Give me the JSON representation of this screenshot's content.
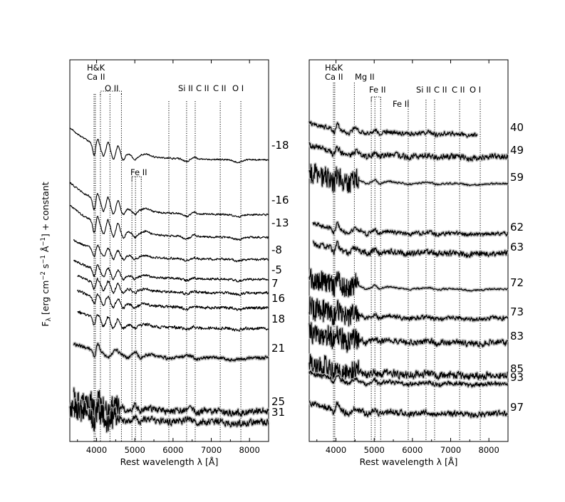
{
  "figure": {
    "ylabel": "F_λ [erg cm⁻² s⁻¹ Å⁻¹] + constant",
    "ylabel_parts": {
      "F": "F",
      "lambda_sub": "λ",
      "open": " [erg cm",
      "cm_exp": "−2",
      "s": " s",
      "s_exp": "−1",
      "A": " Å",
      "A_exp": "−1",
      "close": "] + constant"
    }
  },
  "chart_data": [
    {
      "type": "line",
      "panel": "left",
      "xlabel": "Rest wavelength λ [Å]",
      "xlim": [
        3300,
        8500
      ],
      "x_ticks": [
        4000,
        5000,
        6000,
        7000,
        8000
      ],
      "x_tick_labels": [
        "4000",
        "5000",
        "6000",
        "7000",
        "8000"
      ],
      "y_ticks_shown": false,
      "line_markers": [
        {
          "label": "H&K",
          "x": null
        },
        {
          "label": "Ca II",
          "x": [
            3934,
            3968
          ]
        },
        {
          "label": "O II",
          "x": [
            4100,
            4350,
            4650
          ]
        },
        {
          "label": "Fe II",
          "x": [
            4924,
            5018,
            5169
          ]
        },
        {
          "label": "Si II",
          "x": [
            5890,
            6355
          ]
        },
        {
          "label": "C II",
          "x": [
            6580
          ]
        },
        {
          "label": "C II",
          "x": [
            7235
          ]
        },
        {
          "label": "O I",
          "x": [
            7774
          ]
        }
      ],
      "series": [
        {
          "name": "-18",
          "values": [],
          "wmin": 3300,
          "wmax": 8500
        },
        {
          "name": "-16",
          "values": [],
          "wmin": 3300,
          "wmax": 8500
        },
        {
          "name": "-13",
          "values": [],
          "wmin": 3300,
          "wmax": 8500
        },
        {
          "name": "-8",
          "values": [],
          "wmin": 3400,
          "wmax": 8500
        },
        {
          "name": "-5",
          "values": [],
          "wmin": 3400,
          "wmax": 8500
        },
        {
          "name": "7",
          "values": [],
          "wmin": 3500,
          "wmax": 8500
        },
        {
          "name": "16",
          "values": [],
          "wmin": 3500,
          "wmax": 8500
        },
        {
          "name": "18",
          "values": [],
          "wmin": 3500,
          "wmax": 8500
        },
        {
          "name": "21",
          "values": [],
          "wmin": 3400,
          "wmax": 8500
        },
        {
          "name": "25",
          "values": [],
          "wmin": 3400,
          "wmax": 8500
        },
        {
          "name": "31",
          "values": [],
          "wmin": 3300,
          "wmax": 8500
        }
      ]
    },
    {
      "type": "line",
      "panel": "right",
      "xlabel": "Rest wavelength λ [Å]",
      "xlim": [
        3300,
        8500
      ],
      "x_ticks": [
        4000,
        5000,
        6000,
        7000,
        8000
      ],
      "x_tick_labels": [
        "4000",
        "5000",
        "6000",
        "7000",
        "8000"
      ],
      "y_ticks_shown": false,
      "line_markers": [
        {
          "label": "H&K",
          "x": null
        },
        {
          "label": "Ca II",
          "x": [
            3934,
            3968
          ]
        },
        {
          "label": "Mg II",
          "x": [
            4481
          ]
        },
        {
          "label": "Fe II",
          "x": [
            4924,
            5018,
            5169
          ]
        },
        {
          "label": "Fe II",
          "x": null
        },
        {
          "label": "Si II",
          "x": [
            5890,
            6355
          ]
        },
        {
          "label": "C II",
          "x": [
            6580
          ]
        },
        {
          "label": "C II",
          "x": [
            7235
          ]
        },
        {
          "label": "O I",
          "x": [
            7774
          ]
        }
      ],
      "series": [
        {
          "name": "40",
          "values": [],
          "wmin": 3300,
          "wmax": 7700
        },
        {
          "name": "49",
          "values": [],
          "wmin": 3300,
          "wmax": 8500
        },
        {
          "name": "59",
          "values": [],
          "wmin": 3300,
          "wmax": 8500
        },
        {
          "name": "62",
          "values": [],
          "wmin": 3400,
          "wmax": 8500
        },
        {
          "name": "63",
          "values": [],
          "wmin": 3400,
          "wmax": 8500
        },
        {
          "name": "72",
          "values": [],
          "wmin": 3300,
          "wmax": 8500
        },
        {
          "name": "73",
          "values": [],
          "wmin": 3300,
          "wmax": 8500
        },
        {
          "name": "83",
          "values": [],
          "wmin": 3300,
          "wmax": 8500
        },
        {
          "name": "85",
          "values": [],
          "wmin": 3300,
          "wmax": 8500
        },
        {
          "name": "93",
          "values": [],
          "wmin": 3300,
          "wmax": 8500
        },
        {
          "name": "97",
          "values": [],
          "wmin": 3300,
          "wmax": 8500
        }
      ]
    }
  ]
}
